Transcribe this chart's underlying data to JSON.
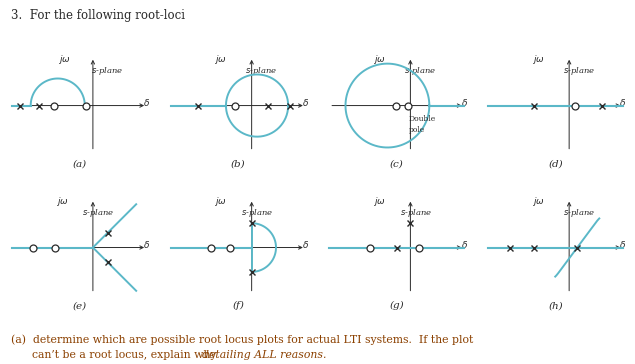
{
  "title": "3.  For the following root-loci",
  "teal_color": "#5BB8C8",
  "line_color": "#2a2a2a",
  "text_color": "#2a2a2a",
  "bg_color": "#ffffff",
  "footer_line1": "(a)  determine which are possible root locus plots for actual LTI systems.  If the plot",
  "footer_line2_regular": "      can’t be a root locus, explain why ",
  "footer_line2_italic": "detailing ALL reasons.",
  "footer_color": "#8B4000"
}
